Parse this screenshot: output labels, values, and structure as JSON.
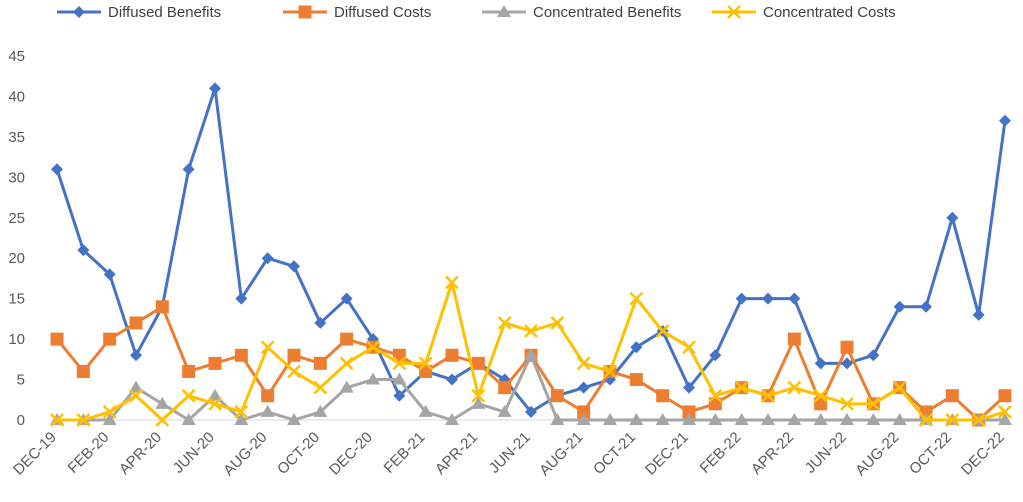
{
  "chart_data": {
    "type": "line",
    "title": "",
    "xlabel": "",
    "ylabel": "",
    "ylim": [
      0,
      45
    ],
    "yticks": [
      0,
      5,
      10,
      15,
      20,
      25,
      30,
      35,
      40,
      45
    ],
    "grid": false,
    "legend_position": "top",
    "categories": [
      "DEC-19",
      "JAN-20",
      "FEB-20",
      "MAR-20",
      "APR-20",
      "MAY-20",
      "JUN-20",
      "JUL-20",
      "AUG-20",
      "SEP-20",
      "OCT-20",
      "NOV-20",
      "DEC-20",
      "JAN-21",
      "FEB-21",
      "MAR-21",
      "APR-21",
      "MAY-21",
      "JUN-21",
      "JUL-21",
      "AUG-21",
      "SEP-21",
      "OCT-21",
      "NOV-21",
      "DEC-21",
      "JAN-22",
      "FEB-22",
      "MAR-22",
      "APR-22",
      "MAY-22",
      "JUN-22",
      "JUL-22",
      "AUG-22",
      "SEP-22",
      "OCT-22",
      "NOV-22",
      "DEC-22"
    ],
    "x_tick_labels": [
      "DEC-19",
      "FEB-20",
      "APR-20",
      "JUN-20",
      "AUG-20",
      "OCT-20",
      "DEC-20",
      "FEB-21",
      "APR-21",
      "JUN-21",
      "AUG-21",
      "OCT-21",
      "DEC-21",
      "FEB-22",
      "APR-22",
      "JUN-22",
      "AUG-22",
      "OCT-22",
      "DEC-22"
    ],
    "series": [
      {
        "name": "Diffused Benefits",
        "color": "#4472C4",
        "marker": "diamond",
        "values": [
          31,
          21,
          18,
          8,
          14,
          31,
          41,
          15,
          20,
          19,
          12,
          15,
          10,
          3,
          6,
          5,
          7,
          5,
          1,
          3,
          4,
          5,
          9,
          11,
          4,
          8,
          15,
          15,
          15,
          7,
          7,
          8,
          14,
          14,
          25,
          13,
          37
        ]
      },
      {
        "name": "Diffused Costs",
        "color": "#ED7D31",
        "marker": "square",
        "values": [
          10,
          6,
          10,
          12,
          14,
          6,
          7,
          8,
          3,
          8,
          7,
          10,
          9,
          8,
          6,
          8,
          7,
          4,
          8,
          3,
          1,
          6,
          5,
          3,
          1,
          2,
          4,
          3,
          10,
          2,
          9,
          2,
          4,
          1,
          3,
          0,
          3
        ]
      },
      {
        "name": "Concentrated Benefits",
        "color": "#A5A5A5",
        "marker": "triangle",
        "values": [
          0,
          0,
          0,
          4,
          2,
          0,
          3,
          0,
          1,
          0,
          1,
          4,
          5,
          5,
          1,
          0,
          2,
          1,
          8,
          0,
          0,
          0,
          0,
          0,
          0,
          0,
          0,
          0,
          0,
          0,
          0,
          0,
          0,
          0,
          0,
          0,
          0
        ]
      },
      {
        "name": "Concentrated Costs",
        "color": "#FFC000",
        "marker": "x",
        "values": [
          0,
          0,
          1,
          3,
          0,
          3,
          2,
          1,
          9,
          6,
          4,
          7,
          9,
          7,
          7,
          17,
          3,
          12,
          11,
          12,
          7,
          6,
          15,
          11,
          9,
          3,
          4,
          3,
          4,
          3,
          2,
          2,
          4,
          0,
          0,
          0,
          1
        ]
      }
    ]
  }
}
